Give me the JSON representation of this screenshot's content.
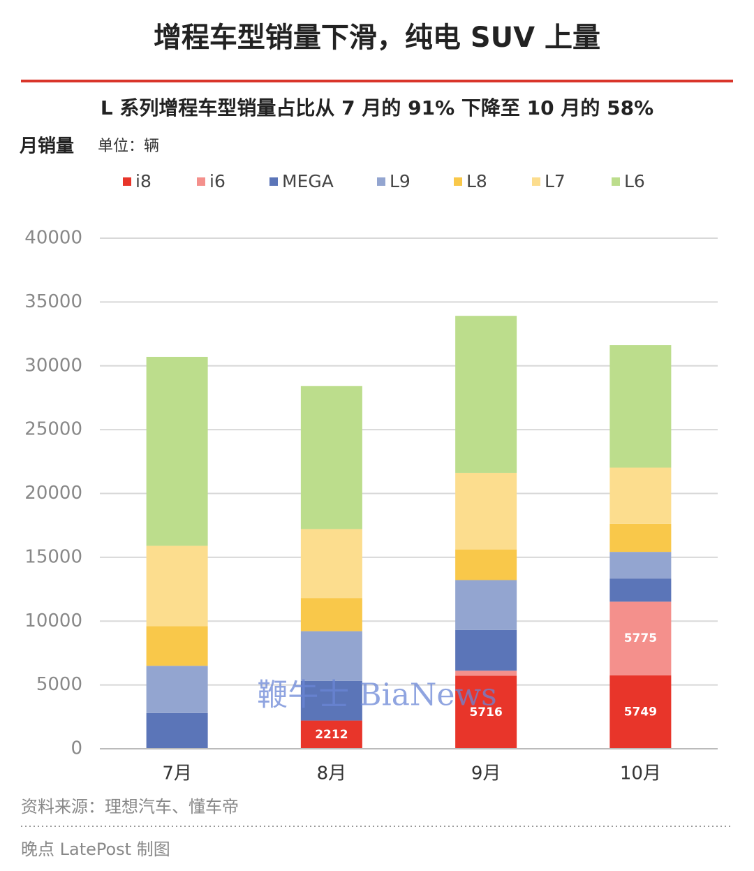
{
  "chart_data": {
    "type": "stacked-bar",
    "title": "增程车型销量下滑，纯电 SUV 上量",
    "subtitle": "L 系列增程车型销量占比从 7 月的 91% 下降至 10 月的 58%",
    "y_label": "月销量",
    "unit": "单位：辆",
    "categories": [
      "7月",
      "8月",
      "9月",
      "10月"
    ],
    "series": [
      {
        "name": "i8",
        "color": "#e8352a",
        "values": [
          0,
          2212,
          5716,
          5749
        ],
        "show_labels": [
          false,
          true,
          true,
          true
        ]
      },
      {
        "name": "i6",
        "color": "#f4908c",
        "values": [
          0,
          0,
          400,
          5775
        ],
        "show_labels": [
          false,
          false,
          false,
          true
        ]
      },
      {
        "name": "MEGA",
        "color": "#5b75b8",
        "values": [
          2800,
          3100,
          3200,
          1800
        ]
      },
      {
        "name": "L9",
        "color": "#93a5d0",
        "values": [
          3700,
          3900,
          3900,
          2100
        ]
      },
      {
        "name": "L8",
        "color": "#f9c84a",
        "values": [
          3100,
          2600,
          2400,
          2200
        ]
      },
      {
        "name": "L7",
        "color": "#fcdd8e",
        "values": [
          6300,
          5400,
          6000,
          4400
        ]
      },
      {
        "name": "L6",
        "color": "#bcdd8c",
        "values": [
          14800,
          11200,
          12300,
          9600
        ]
      }
    ],
    "ylim": [
      0,
      40000
    ],
    "yticks": [
      0,
      5000,
      10000,
      15000,
      20000,
      25000,
      30000,
      35000,
      40000
    ],
    "grid": true,
    "watermark": "鞭牛士 BiaNews",
    "source": "资料来源：理想汽车、懂车帝",
    "credit": "晚点 LatePost 制图"
  }
}
